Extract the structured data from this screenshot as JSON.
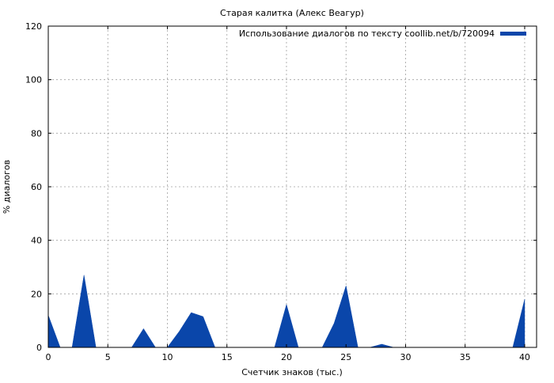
{
  "colors": {
    "series": "#0a46aa",
    "background": "#ffffff",
    "grid": "#a0a0a0"
  },
  "chart_data": {
    "type": "area",
    "title": "Старая калитка (Алекс Веагур)",
    "xlabel": "Счетчик знаков (тыс.)",
    "ylabel": "% диалогов",
    "xlim": [
      0,
      41
    ],
    "ylim": [
      0,
      120
    ],
    "x_ticks": [
      0,
      5,
      10,
      15,
      20,
      25,
      30,
      35,
      40
    ],
    "y_ticks": [
      0,
      20,
      40,
      60,
      80,
      100,
      120
    ],
    "grid": true,
    "legend_position": "top-right",
    "series": [
      {
        "name": "Использование диалогов по тексту coollib.net/b/720094",
        "color": "#0a46aa",
        "x": [
          0,
          1,
          2,
          3,
          4,
          5,
          6,
          7,
          8,
          9,
          10,
          11,
          12,
          13,
          14,
          15,
          16,
          17,
          18,
          19,
          20,
          21,
          22,
          23,
          24,
          25,
          26,
          27,
          28,
          29,
          30,
          31,
          32,
          33,
          34,
          35,
          36,
          37,
          38,
          39,
          40
        ],
        "values": [
          12,
          0,
          0,
          27,
          0,
          0,
          0,
          0,
          7,
          0,
          0,
          6,
          13,
          11.5,
          0,
          0,
          0,
          0,
          0,
          0,
          16,
          0,
          0,
          0,
          9,
          23,
          0,
          0,
          1.2,
          0,
          0,
          0,
          0,
          0,
          0,
          0,
          0,
          0,
          0,
          0,
          18
        ]
      }
    ]
  }
}
